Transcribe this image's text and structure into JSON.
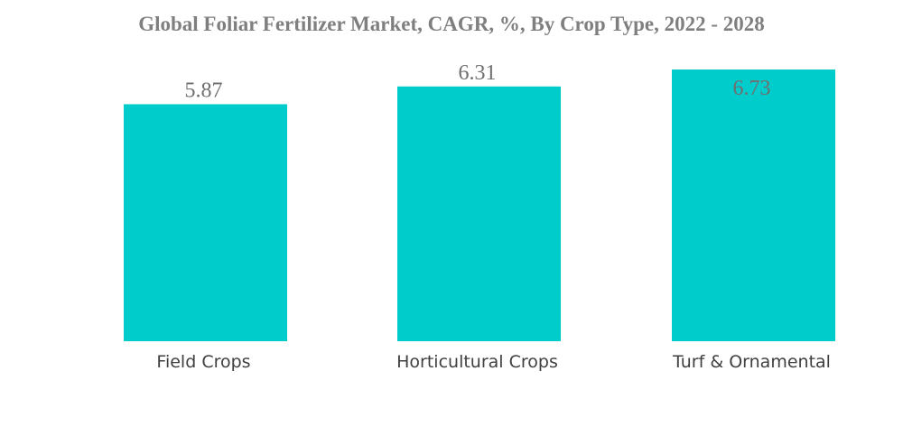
{
  "chart_data": {
    "type": "bar",
    "title": "Global Foliar Fertilizer Market, CAGR, %, By Crop Type, 2022 - 2028",
    "categories": [
      "Field Crops",
      "Horticultural Crops",
      "Turf & Ornamental"
    ],
    "values": [
      5.87,
      6.31,
      6.73
    ],
    "value_labels": [
      "5.87",
      "6.31",
      "6.73"
    ],
    "xlabel": "",
    "ylabel": "",
    "ylim": [
      0,
      6.73
    ],
    "grid": false,
    "legend": "none",
    "colors": {
      "bar": "#00cccc",
      "title": "#7f7f7f",
      "value_label": "#6f6f6f",
      "category_label": "#404040"
    }
  }
}
